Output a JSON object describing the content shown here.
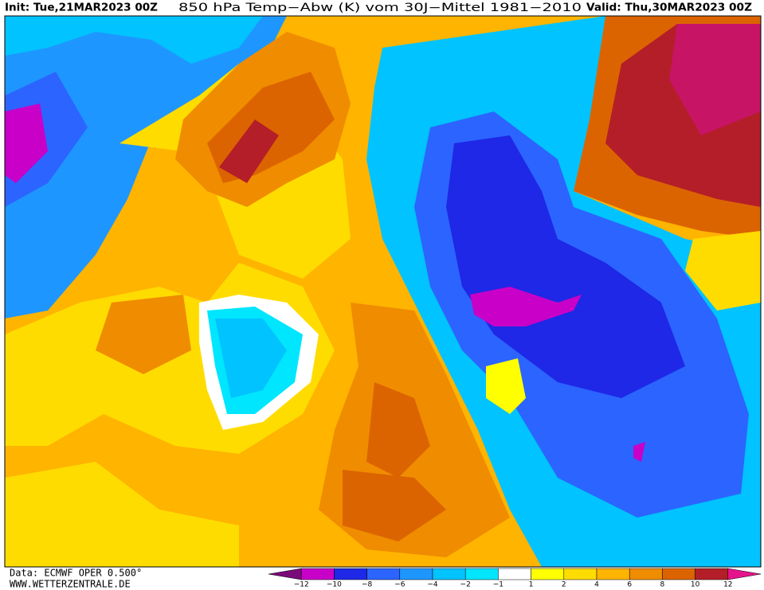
{
  "header": {
    "init": "Init: Tue,21MAR2023 00Z",
    "title": "850 hPa Temp−Abw (K) vom 30J−Mittel 1981−2010",
    "valid": "Valid: Thu,30MAR2023 00Z"
  },
  "footer": {
    "source": "Data: ECMWF OPER 0.500°",
    "site": "WWW.WETTERZENTRALE.DE"
  },
  "legend": {
    "ticks": [
      "−12",
      "−10",
      "−8",
      "−6",
      "−4",
      "−2",
      "−1",
      "1",
      "2",
      "4",
      "6",
      "8",
      "10",
      "12"
    ],
    "colors": [
      "#7a0a7a",
      "#c800c8",
      "#1e28e6",
      "#2c64ff",
      "#1e96ff",
      "#00c3ff",
      "#00e6ff",
      "#ffffff",
      "#ffff00",
      "#ffdc00",
      "#ffb400",
      "#f08c00",
      "#dc6400",
      "#b41e28",
      "#e6148c"
    ]
  }
}
